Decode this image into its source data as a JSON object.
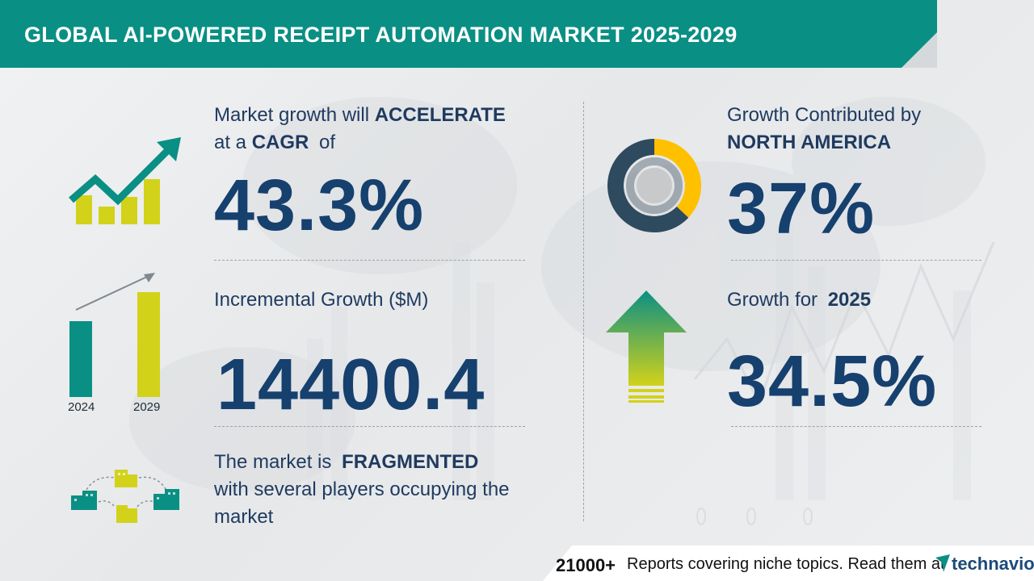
{
  "header": {
    "title": "GLOBAL AI-POWERED RECEIPT AUTOMATION MARKET 2025-2029"
  },
  "cagr": {
    "line1_prefix": "Market growth will ",
    "line1_bold": "ACCELERATE",
    "line2_prefix": "at a ",
    "line2_bold": "CAGR",
    "line2_suffix": " of",
    "value": "43.3%"
  },
  "incremental": {
    "label": "Incremental Growth ($M)",
    "value": "14400.4",
    "year_start": "2024",
    "year_end": "2029"
  },
  "fragmented": {
    "line1_prefix": "The market is ",
    "line1_bold": "FRAGMENTED",
    "line2": "with several players occupying the",
    "line3": "market"
  },
  "region": {
    "line1": "Growth Contributed by",
    "line2_bold": "NORTH AMERICA",
    "value": "37%",
    "share": 0.37
  },
  "yoy": {
    "label_prefix": "Growth for ",
    "label_bold": "2025",
    "value": "34.5%"
  },
  "footer": {
    "count": "21000+",
    "text": "Reports covering niche topics. Read them at",
    "brand": "technavio"
  },
  "colors": {
    "teal": "#0a8f84",
    "navy": "#16406e",
    "lime": "#d2d21a",
    "amber": "#ffc000",
    "slate": "#2e4a5e"
  },
  "icons": {
    "growth": "trend-up-arrow-icon",
    "bars": "bar-compare-icon",
    "buildings": "fragmented-buildings-icon",
    "donut": "donut-share-icon",
    "arrow": "up-arrow-icon",
    "brand": "technavio-logo-icon"
  }
}
